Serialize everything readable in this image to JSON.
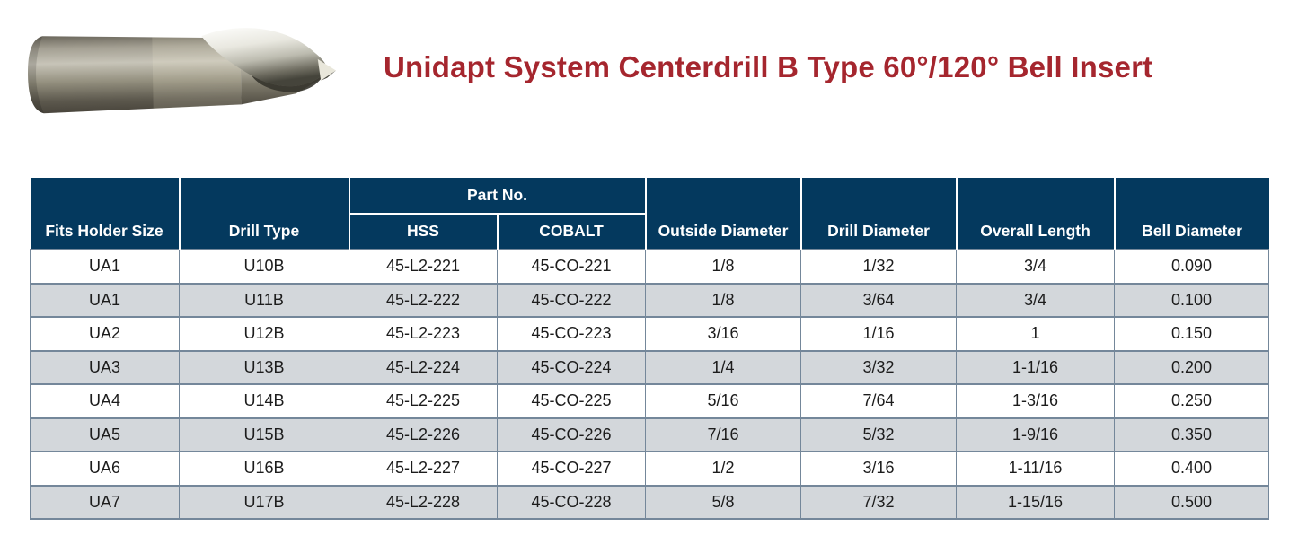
{
  "page": {
    "title": "Unidapt System Centerdrill B Type 60°/120° Bell Insert"
  },
  "colors": {
    "title_red": "#a5262e",
    "header_navy": "#04395e",
    "header_text": "#ffffff",
    "row_alt_gray": "#d3d7db",
    "row_white": "#ffffff",
    "border_gray": "#74879a",
    "cell_text": "#1c1c1c"
  },
  "product_image": {
    "icon": "centerdrill-bit-photo"
  },
  "table": {
    "part_no_group_label": "Part No.",
    "columns": {
      "fits_holder_size": "Fits Holder Size",
      "drill_type": "Drill Type",
      "hss": "HSS",
      "cobalt": "COBALT",
      "outside_diameter": "Outside Diameter",
      "drill_diameter": "Drill Diameter",
      "overall_length": "Overall Length",
      "bell_diameter": "Bell Diameter"
    },
    "rows": [
      [
        "UA1",
        "U10B",
        "45-L2-221",
        "45-CO-221",
        "1/8",
        "1/32",
        "3/4",
        "0.090"
      ],
      [
        "UA1",
        "U11B",
        "45-L2-222",
        "45-CO-222",
        "1/8",
        "3/64",
        "3/4",
        "0.100"
      ],
      [
        "UA2",
        "U12B",
        "45-L2-223",
        "45-CO-223",
        "3/16",
        "1/16",
        "1",
        "0.150"
      ],
      [
        "UA3",
        "U13B",
        "45-L2-224",
        "45-CO-224",
        "1/4",
        "3/32",
        "1-1/16",
        "0.200"
      ],
      [
        "UA4",
        "U14B",
        "45-L2-225",
        "45-CO-225",
        "5/16",
        "7/64",
        "1-3/16",
        "0.250"
      ],
      [
        "UA5",
        "U15B",
        "45-L2-226",
        "45-CO-226",
        "7/16",
        "5/32",
        "1-9/16",
        "0.350"
      ],
      [
        "UA6",
        "U16B",
        "45-L2-227",
        "45-CO-227",
        "1/2",
        "3/16",
        "1-11/16",
        "0.400"
      ],
      [
        "UA7",
        "U17B",
        "45-L2-228",
        "45-CO-228",
        "5/8",
        "7/32",
        "1-15/16",
        "0.500"
      ]
    ]
  }
}
